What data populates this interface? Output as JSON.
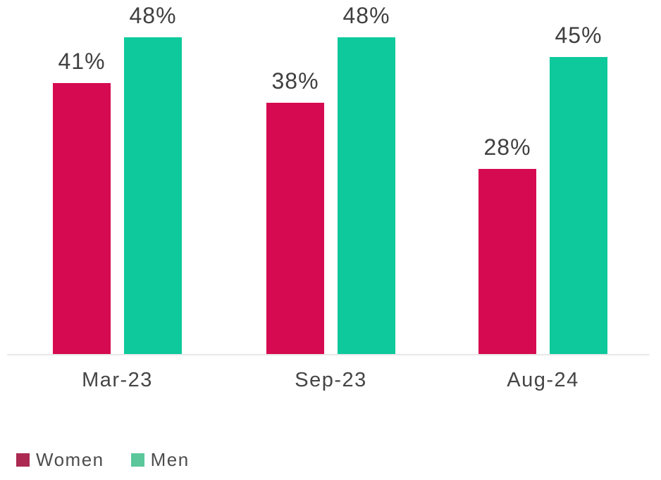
{
  "chart_data": {
    "type": "bar",
    "title": "",
    "xlabel": "",
    "ylabel": "",
    "categories": [
      "Mar-23",
      "Sep-23",
      "Aug-24"
    ],
    "series": [
      {
        "name": "Women",
        "values": [
          41,
          38,
          28
        ],
        "data_labels": [
          "41%",
          "38%",
          "28%"
        ],
        "color": "#D60A50",
        "legend_color": "#AC2A52"
      },
      {
        "name": "Men",
        "values": [
          48,
          48,
          45
        ],
        "data_labels": [
          "48%",
          "48%",
          "45%"
        ],
        "color": "#0DC99B",
        "legend_color": "#5BC79B"
      }
    ],
    "value_suffix": "%",
    "ylim": [
      0,
      50
    ],
    "grid": false,
    "legend_position": "bottom-left",
    "colors": {
      "axis_line": "#E8E8E8",
      "data_label_text": "#404040",
      "axis_text": "#454545",
      "legend_text": "#4D4D4D",
      "background": "#FFFFFF"
    }
  }
}
